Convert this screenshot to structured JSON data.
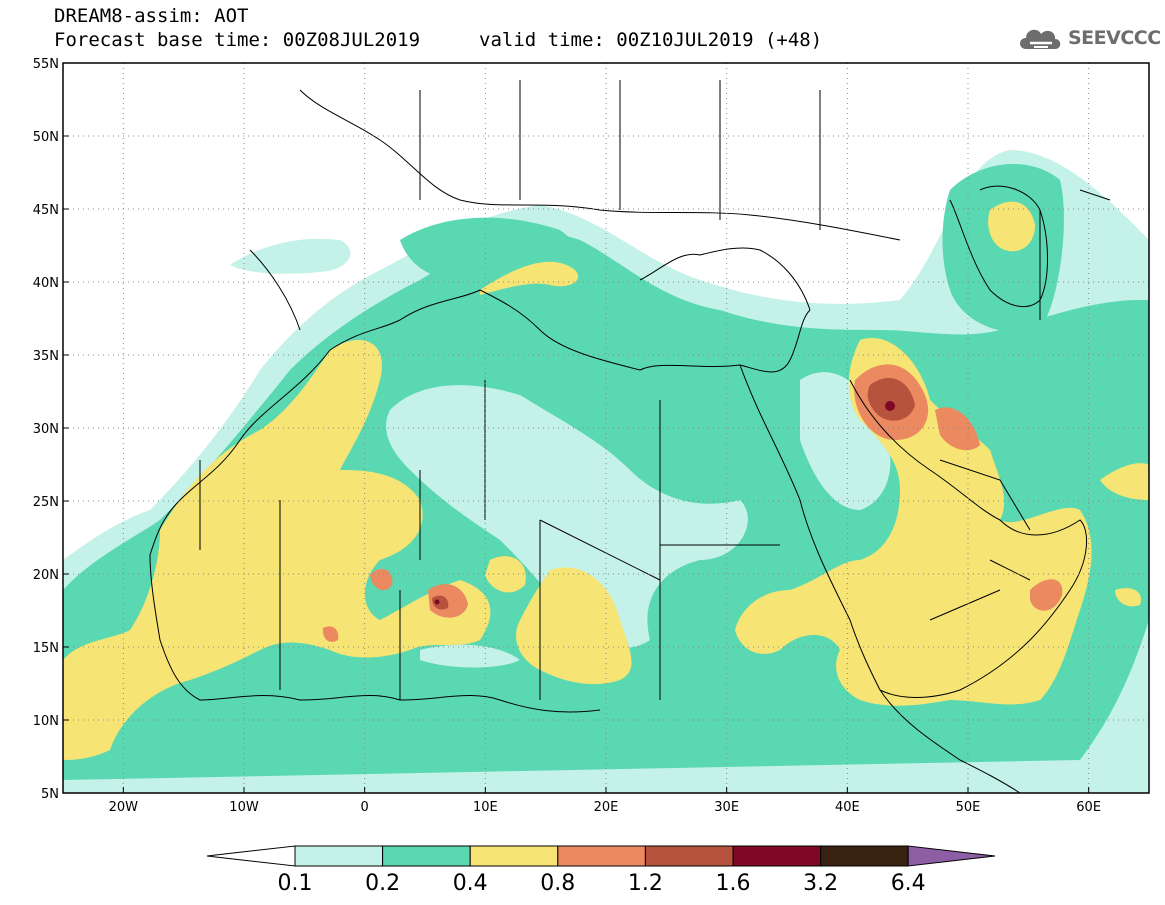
{
  "title": {
    "line1": "DREAM8-assim: AOT",
    "line2": "Forecast base time: 00Z08JUL2019",
    "valid": "valid time: 00Z10JUL2019 (+48)"
  },
  "logo": {
    "text": "SEEVCCC",
    "icon": "cloud-icon"
  },
  "map": {
    "lon_range": [
      -25,
      65
    ],
    "lat_range": [
      5,
      55
    ],
    "lat_ticks": [
      {
        "value": 55,
        "label": "55N"
      },
      {
        "value": 50,
        "label": "50N"
      },
      {
        "value": 45,
        "label": "45N"
      },
      {
        "value": 40,
        "label": "40N"
      },
      {
        "value": 35,
        "label": "35N"
      },
      {
        "value": 30,
        "label": "30N"
      },
      {
        "value": 25,
        "label": "25N"
      },
      {
        "value": 20,
        "label": "20N"
      },
      {
        "value": 15,
        "label": "15N"
      },
      {
        "value": 10,
        "label": "10N"
      },
      {
        "value": 5,
        "label": "5N"
      }
    ],
    "lon_ticks": [
      {
        "value": -20,
        "label": "20W"
      },
      {
        "value": -10,
        "label": "10W"
      },
      {
        "value": 0,
        "label": "0"
      },
      {
        "value": 10,
        "label": "10E"
      },
      {
        "value": 20,
        "label": "20E"
      },
      {
        "value": 30,
        "label": "30E"
      },
      {
        "value": 40,
        "label": "40E"
      },
      {
        "value": 50,
        "label": "50E"
      },
      {
        "value": 60,
        "label": "60E"
      }
    ],
    "grid": "dotted",
    "contour_levels": [
      0.1,
      0.2,
      0.4,
      0.8,
      1.2,
      1.6,
      3.2,
      6.4
    ],
    "colors": [
      "#c4f2e9",
      "#5ad8b1",
      "#f6e474",
      "#eb8a60",
      "#b5533d",
      "#7e0825",
      "#3a2212",
      "#8d5ea4"
    ]
  },
  "colorbar": {
    "labels": [
      "0.1",
      "0.2",
      "0.4",
      "0.8",
      "1.2",
      "1.6",
      "3.2",
      "6.4"
    ],
    "colors": [
      "#c4f2e9",
      "#5ad8b1",
      "#f6e474",
      "#eb8a60",
      "#b5533d",
      "#7e0825",
      "#3a2212"
    ],
    "over_color": "#8d5ea4",
    "under_color": "#ffffff"
  }
}
